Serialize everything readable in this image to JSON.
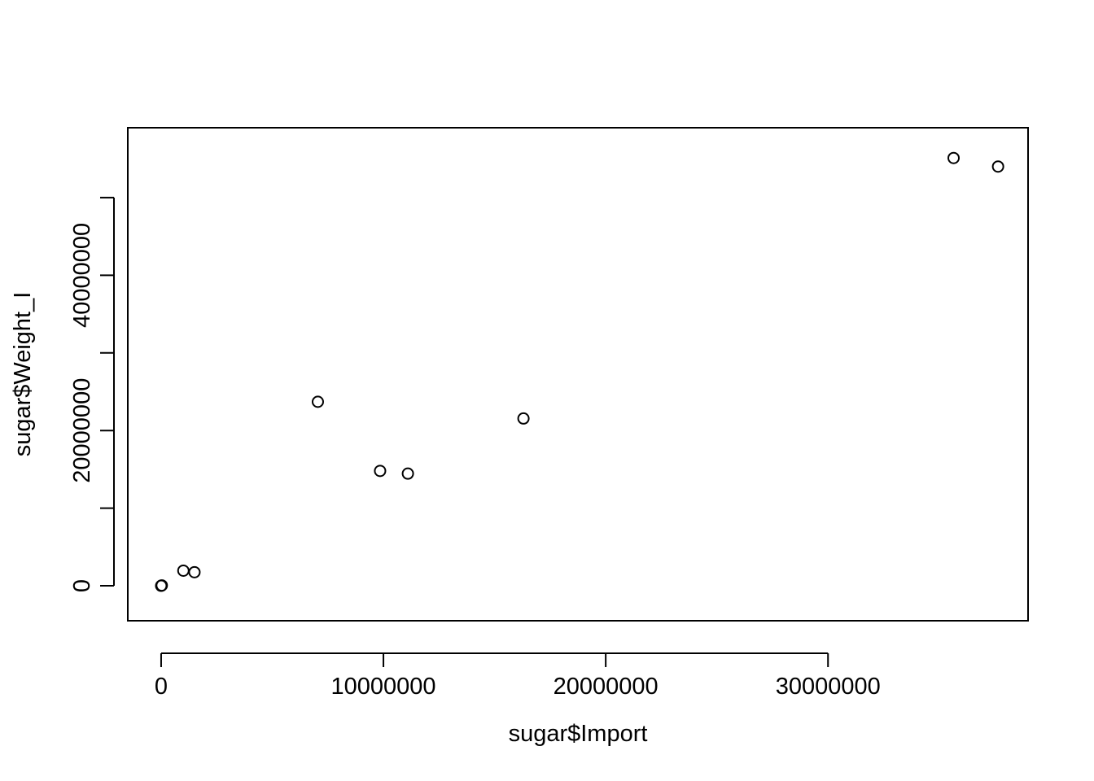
{
  "chart_data": {
    "type": "scatter",
    "title": "",
    "xlabel": "sugar$Import",
    "ylabel": "sugar$Weight_I",
    "xlim": [
      -1500000,
      39000000
    ],
    "ylim": [
      -4500000,
      59000000
    ],
    "x_ticks": [
      0,
      10000000,
      20000000,
      30000000
    ],
    "x_tick_labels": [
      "0",
      "10000000",
      "20000000",
      "30000000"
    ],
    "y_ticks": [
      0,
      10000000,
      20000000,
      30000000,
      40000000,
      50000000
    ],
    "y_tick_labels": [
      "0",
      "20000000",
      "40000000"
    ],
    "grid": false,
    "legend": "none",
    "marker": "open-circle",
    "color": "#000000",
    "points": [
      {
        "x": 0,
        "y": 0
      },
      {
        "x": 30000,
        "y": 50000
      },
      {
        "x": 1000000,
        "y": 1950000
      },
      {
        "x": 1500000,
        "y": 1750000
      },
      {
        "x": 7050000,
        "y": 23700000
      },
      {
        "x": 9850000,
        "y": 14800000
      },
      {
        "x": 11100000,
        "y": 14450000
      },
      {
        "x": 16300000,
        "y": 21550000
      },
      {
        "x": 35650000,
        "y": 55100000
      },
      {
        "x": 37650000,
        "y": 54000000
      }
    ]
  }
}
